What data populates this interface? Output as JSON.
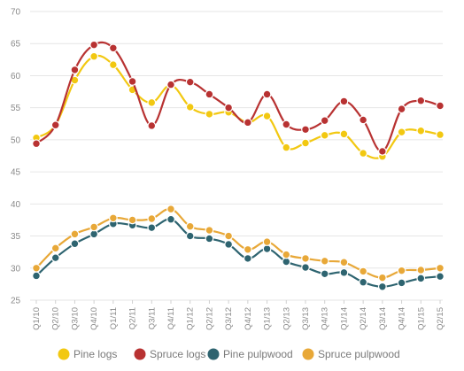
{
  "chart_data": {
    "type": "line",
    "x": [
      "Q1/10",
      "Q2/10",
      "Q3/10",
      "Q4/10",
      "Q1/11",
      "Q2/11",
      "Q3/11",
      "Q4/11",
      "Q1/12",
      "Q2/12",
      "Q3/12",
      "Q4/12",
      "Q1/13",
      "Q2/13",
      "Q3/13",
      "Q4/13",
      "Q1/14",
      "Q2/14",
      "Q3/14",
      "Q4/14",
      "Q1/15",
      "Q2/15"
    ],
    "ylim": [
      25,
      70
    ],
    "yticks": [
      25,
      30,
      35,
      40,
      45,
      50,
      55,
      60,
      65,
      70
    ],
    "grid": true,
    "legend_position": "bottom",
    "series": [
      {
        "name": "Pine logs",
        "color": "#f2c811",
        "values": [
          50.3,
          52.3,
          59.3,
          63.0,
          61.7,
          57.8,
          55.8,
          58.5,
          55.1,
          54.0,
          54.3,
          52.7,
          53.7,
          48.8,
          49.5,
          50.7,
          50.9,
          47.9,
          47.4,
          51.2,
          51.4,
          50.8
        ]
      },
      {
        "name": "Spruce logs",
        "color": "#b83232",
        "values": [
          49.4,
          52.3,
          60.9,
          64.8,
          64.3,
          59.1,
          52.2,
          58.6,
          59.0,
          57.1,
          55.0,
          52.7,
          57.1,
          52.4,
          51.6,
          53.0,
          56.0,
          53.1,
          48.2,
          54.8,
          56.1,
          55.3
        ]
      },
      {
        "name": "Pine pulpwood",
        "color": "#2e6470",
        "values": [
          28.8,
          31.6,
          33.8,
          35.3,
          36.9,
          36.7,
          36.3,
          37.6,
          35.0,
          34.6,
          33.7,
          31.5,
          33.0,
          31.0,
          30.1,
          29.1,
          29.3,
          27.8,
          27.1,
          27.7,
          28.4,
          28.7
        ]
      },
      {
        "name": "Spruce pulpwood",
        "color": "#e8a838",
        "values": [
          30.0,
          33.1,
          35.3,
          36.4,
          37.8,
          37.5,
          37.7,
          39.2,
          36.5,
          35.9,
          35.0,
          32.9,
          34.1,
          32.1,
          31.5,
          31.1,
          30.9,
          29.5,
          28.5,
          29.6,
          29.7,
          30.0
        ]
      }
    ]
  }
}
